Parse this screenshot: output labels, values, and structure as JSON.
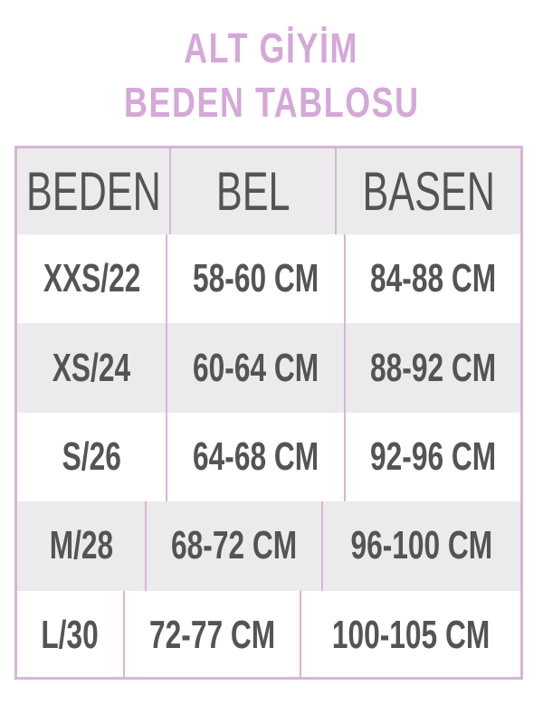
{
  "title": {
    "line1": "ALT GİYİM",
    "line2": "BEDEN TABLOSU"
  },
  "colors": {
    "accent": "#d5a8d8",
    "text": "#545454",
    "stripe": "#ebebeb"
  },
  "table": {
    "headers": [
      "BEDEN",
      "BEL",
      "BASEN"
    ],
    "rows": [
      [
        "XXS/22",
        "58-60 CM",
        "84-88 CM"
      ],
      [
        "XS/24",
        "60-64 CM",
        "88-92 CM"
      ],
      [
        "S/26",
        "64-68 CM",
        "92-96 CM"
      ],
      [
        "M/28",
        "68-72 CM",
        "96-100 CM"
      ],
      [
        "L/30",
        "72-77 CM",
        "100-105 CM"
      ]
    ]
  }
}
